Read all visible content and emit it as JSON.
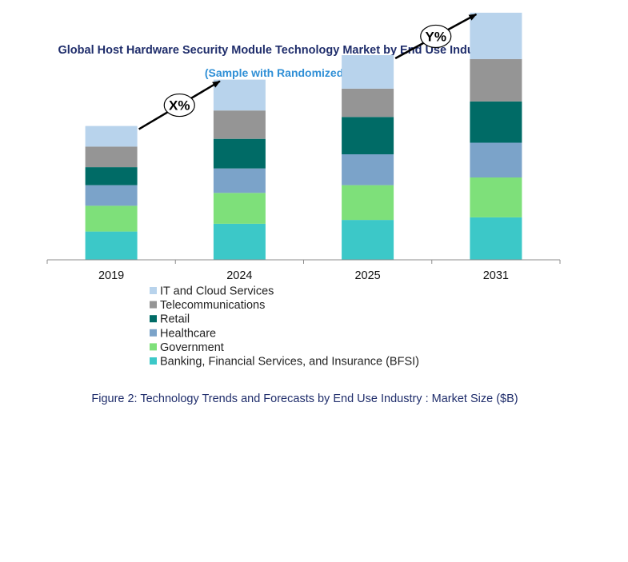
{
  "chart_data": {
    "type": "bar",
    "stacked": true,
    "title": "Global Host Hardware Security Module Technology Market by End Use Industry ($B)",
    "subtitle": "(Sample with Randomized Data)",
    "categories": [
      "2019",
      "2024",
      "2025",
      "2031"
    ],
    "series": [
      {
        "name": "Banking, Financial Services, and Insurance (BFSI)",
        "color": "#3cc8c8",
        "values": [
          2.2,
          2.8,
          3.1,
          3.3
        ]
      },
      {
        "name": "Government",
        "color": "#7ee07a",
        "values": [
          2.0,
          2.4,
          2.7,
          3.1
        ]
      },
      {
        "name": "Healthcare",
        "color": "#7ba3c9",
        "values": [
          1.6,
          1.9,
          2.4,
          2.7
        ]
      },
      {
        "name": "Retail",
        "color": "#006b66",
        "values": [
          1.4,
          2.3,
          2.9,
          3.2
        ]
      },
      {
        "name": "Telecommunications",
        "color": "#959595",
        "values": [
          1.6,
          2.2,
          2.2,
          3.3
        ]
      },
      {
        "name": "IT and Cloud Services",
        "color": "#b8d3ec",
        "values": [
          1.6,
          2.4,
          2.6,
          3.6
        ]
      }
    ],
    "annotations": [
      {
        "label": "X%",
        "from": "2019",
        "to": "2024"
      },
      {
        "label": "Y%",
        "from": "2025",
        "to": "2031"
      }
    ],
    "legend_position": "bottom",
    "grid": false
  },
  "caption": "Figure 2: Technology Trends and Forecasts by End Use Industry : Market Size ($B)"
}
